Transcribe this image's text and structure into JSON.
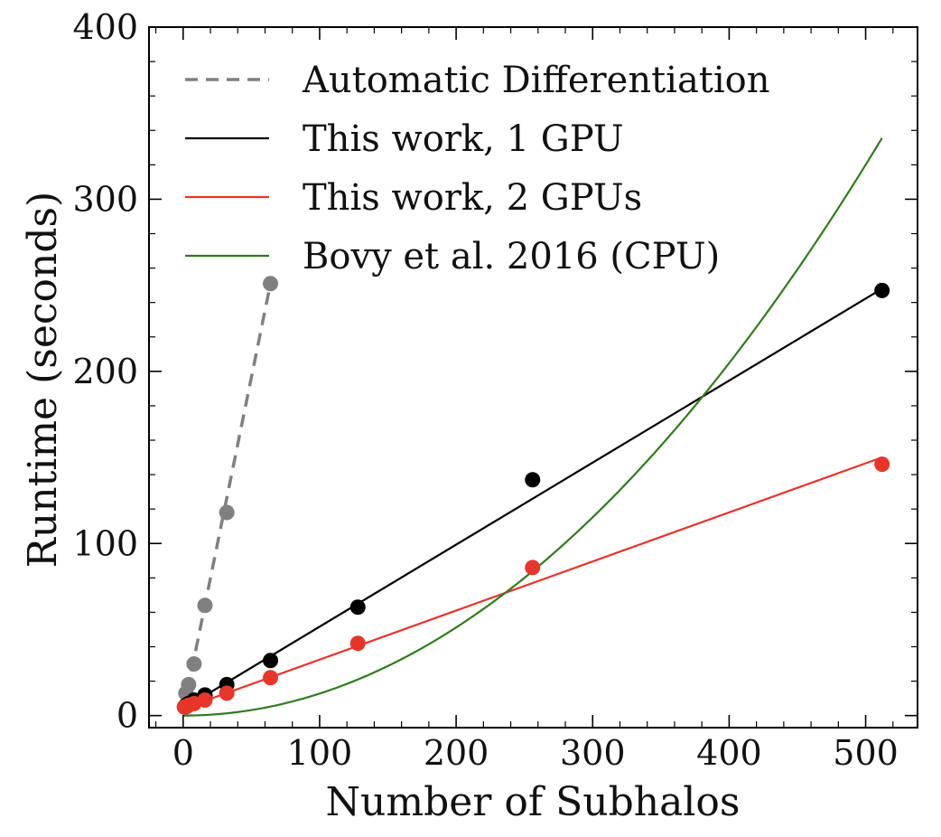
{
  "chart_data": {
    "type": "line",
    "title": "",
    "xlabel": "Number of Subhalos",
    "ylabel": "Runtime (seconds)",
    "xlim": [
      -25,
      538
    ],
    "ylim": [
      -7,
      400
    ],
    "xticks": [
      0,
      100,
      200,
      300,
      400,
      500
    ],
    "yticks": [
      0,
      100,
      200,
      300,
      400
    ],
    "xtick_labels": [
      "0",
      "100",
      "200",
      "300",
      "400",
      "500"
    ],
    "ytick_labels": [
      "0",
      "100",
      "200",
      "300",
      "400"
    ],
    "minor_ticks": true,
    "ticks_direction": "in",
    "grid": false,
    "legend_position": "top-left",
    "series": [
      {
        "name": "Automatic Differentiation",
        "color": "#808080",
        "line_style": "dashed",
        "markers": {
          "x": [
            1,
            2,
            4,
            8,
            16,
            32,
            64
          ],
          "y": [
            5,
            13,
            18,
            30,
            64,
            118,
            251
          ]
        },
        "fit": {
          "x": [
            0,
            64
          ],
          "y": [
            2,
            251
          ]
        }
      },
      {
        "name": "This work, 1 GPU",
        "color": "#000000",
        "line_style": "solid",
        "markers": {
          "x": [
            1,
            2,
            4,
            8,
            16,
            32,
            64,
            128,
            256,
            512
          ],
          "y": [
            5,
            6,
            7,
            9,
            12,
            18,
            32,
            63,
            137,
            247
          ]
        },
        "fit": {
          "x": [
            0,
            512
          ],
          "y": [
            4,
            248
          ]
        }
      },
      {
        "name": "This work, 2 GPUs",
        "color": "#e8352a",
        "line_style": "solid",
        "markers": {
          "x": [
            1,
            2,
            4,
            8,
            16,
            32,
            64,
            128,
            256,
            512
          ],
          "y": [
            5,
            5,
            6,
            7,
            9,
            13,
            22,
            42,
            86,
            146
          ]
        },
        "fit": {
          "x": [
            0,
            512
          ],
          "y": [
            4,
            150
          ]
        }
      },
      {
        "name": "Bovy et al. 2016 (CPU)",
        "color": "#2e7d1a",
        "line_style": "solid",
        "markers": null,
        "fit": {
          "type": "quadratic",
          "coefficient": 0.00128,
          "x_range": [
            0,
            512
          ]
        }
      }
    ]
  }
}
